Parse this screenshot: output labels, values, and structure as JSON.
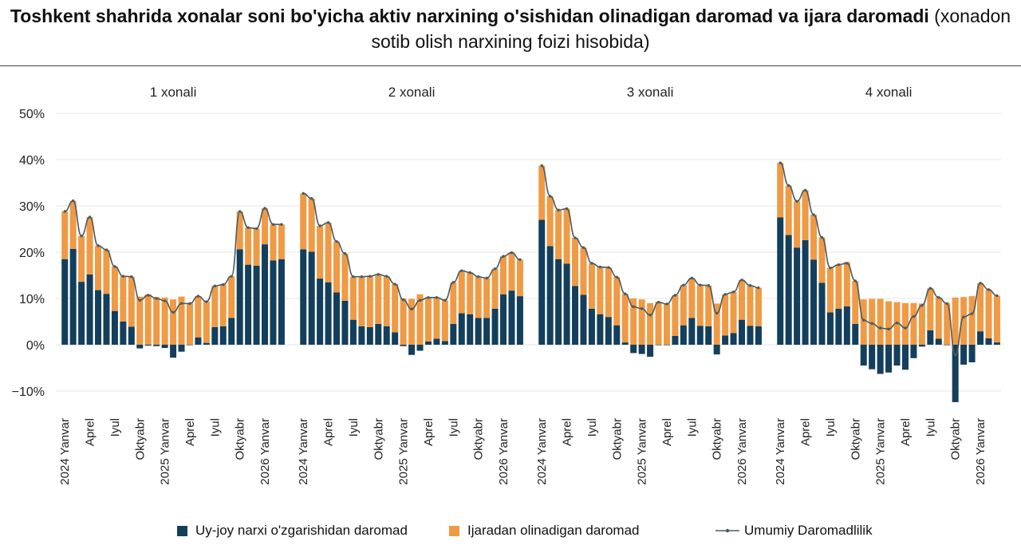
{
  "title": {
    "bold": "Toshkent shahrida xonalar soni bo'yicha aktiv narxining o'sishidan olinadigan daromad va ijara daromadi",
    "normal": " (xonadon sotib olish narxining foizi hisobida)"
  },
  "colors": {
    "price": "#133f5c",
    "rent": "#ef9a44",
    "total": "#4a5b62",
    "grid": "#e4e4e4"
  },
  "legend": {
    "price": "Uy-joy narxi o'zgarishidan daromad",
    "rent": "Ijaradan olinadigan daromad",
    "total": "Umumiy Daromadlilik"
  },
  "chart_data": {
    "type": "bar",
    "stacked": true,
    "y_ticks": [
      "50%",
      "40%",
      "30%",
      "20%",
      "10%",
      "0%",
      "−10%"
    ],
    "ylim": [
      -15,
      50
    ],
    "x_tick_labels": [
      {
        "index": 0,
        "label": "2024 Yanvar"
      },
      {
        "index": 3,
        "label": "Aprel"
      },
      {
        "index": 6,
        "label": "Iyul"
      },
      {
        "index": 9,
        "label": "Oktyabr"
      },
      {
        "index": 12,
        "label": "2025 Yanvar"
      },
      {
        "index": 15,
        "label": "Aprel"
      },
      {
        "index": 18,
        "label": "Iyul"
      },
      {
        "index": 21,
        "label": "Oktyabr"
      },
      {
        "index": 24,
        "label": "2026 Yanvar"
      }
    ],
    "panels": [
      {
        "name": "1 xonali",
        "price": [
          18.5,
          20.7,
          13.6,
          15.2,
          11.8,
          11.0,
          7.3,
          5.0,
          3.9,
          -0.8,
          -0.2,
          -0.3,
          -0.7,
          -2.8,
          -1.5,
          -0.1,
          1.6,
          0.4,
          3.8,
          4.0,
          5.8,
          20.6,
          17.3,
          17.1,
          21.7,
          18.2,
          18.5
        ],
        "rent": [
          10.3,
          10.4,
          9.9,
          12.4,
          9.6,
          9.5,
          9.6,
          9.8,
          10.8,
          10.4,
          10.9,
          10.3,
          10.2,
          9.8,
          10.4,
          9.0,
          8.9,
          8.9,
          8.9,
          9.0,
          9.0,
          8.2,
          8.0,
          8.0,
          7.8,
          7.8,
          7.5
        ],
        "total": [
          28.8,
          31.1,
          23.5,
          27.6,
          21.4,
          20.5,
          16.9,
          14.8,
          14.7,
          9.6,
          10.7,
          10.0,
          9.5,
          7.0,
          8.9,
          8.9,
          10.5,
          9.3,
          12.7,
          13.0,
          14.8,
          28.8,
          25.3,
          25.1,
          29.5,
          26.0,
          26.0
        ]
      },
      {
        "name": "2 xonali",
        "price": [
          20.6,
          20.1,
          14.3,
          13.5,
          11.3,
          9.5,
          5.4,
          4.0,
          3.8,
          4.5,
          4.0,
          2.7,
          -0.3,
          -2.2,
          -1.3,
          0.7,
          1.3,
          0.8,
          4.5,
          6.8,
          6.6,
          5.8,
          5.8,
          7.8,
          10.9,
          11.7,
          10.5
        ],
        "rent": [
          12.1,
          11.5,
          11.4,
          12.9,
          11.0,
          10.2,
          9.3,
          10.7,
          11.0,
          10.7,
          10.8,
          10.4,
          10.0,
          9.9,
          10.9,
          9.5,
          8.9,
          8.8,
          9.0,
          9.2,
          9.0,
          8.9,
          8.6,
          8.6,
          8.2,
          8.2,
          7.9
        ],
        "total": [
          32.7,
          31.6,
          25.7,
          26.4,
          22.3,
          19.7,
          14.7,
          14.7,
          14.8,
          15.2,
          14.8,
          13.1,
          9.7,
          7.7,
          9.6,
          10.2,
          10.2,
          9.6,
          13.5,
          16.0,
          15.6,
          14.7,
          14.4,
          16.4,
          19.1,
          19.9,
          18.4
        ]
      },
      {
        "name": "3 xonali",
        "price": [
          27.0,
          21.3,
          18.5,
          17.5,
          12.7,
          10.8,
          7.8,
          6.6,
          6.0,
          4.2,
          0.5,
          -1.8,
          -2.0,
          -2.6,
          -0.1,
          -0.1,
          1.9,
          4.2,
          5.8,
          4.1,
          4.0,
          -2.1,
          2.0,
          2.5,
          5.4,
          4.1,
          4.0
        ],
        "rent": [
          11.7,
          10.8,
          10.6,
          11.9,
          10.4,
          10.2,
          9.8,
          10.2,
          10.7,
          10.4,
          10.5,
          10.0,
          9.8,
          9.0,
          9.3,
          8.9,
          8.8,
          8.7,
          8.6,
          8.8,
          8.8,
          8.9,
          8.9,
          8.9,
          8.6,
          8.7,
          8.3
        ],
        "total": [
          38.7,
          32.1,
          29.1,
          29.4,
          23.1,
          21.0,
          17.6,
          16.8,
          16.7,
          14.6,
          11.0,
          8.2,
          7.8,
          6.4,
          9.2,
          8.8,
          10.7,
          12.9,
          14.4,
          12.9,
          12.8,
          6.8,
          10.9,
          11.4,
          14.0,
          12.8,
          12.3
        ]
      },
      {
        "name": "4 xonali",
        "price": [
          27.5,
          23.7,
          21.0,
          22.6,
          18.4,
          13.4,
          7.0,
          7.8,
          8.3,
          4.5,
          -4.5,
          -5.3,
          -6.3,
          -6.0,
          -4.5,
          -5.4,
          -2.9,
          -0.4,
          3.1,
          1.3,
          -0.1,
          -12.4,
          -4.3,
          -3.8,
          2.9,
          1.4,
          0.5
        ],
        "rent": [
          11.8,
          10.7,
          10.0,
          10.8,
          9.7,
          9.8,
          9.6,
          9.5,
          9.6,
          9.3,
          9.8,
          9.9,
          9.9,
          9.4,
          9.2,
          9.0,
          9.0,
          8.9,
          9.1,
          8.9,
          9.0,
          10.2,
          10.3,
          10.5,
          10.4,
          10.5,
          10.1
        ],
        "total": [
          39.3,
          34.4,
          31.0,
          33.4,
          28.1,
          23.2,
          16.6,
          17.3,
          17.6,
          13.8,
          5.3,
          4.6,
          3.6,
          3.4,
          4.7,
          3.6,
          6.1,
          8.5,
          12.2,
          10.2,
          8.9,
          -2.2,
          6.0,
          6.7,
          13.3,
          11.9,
          10.6
        ]
      }
    ]
  }
}
